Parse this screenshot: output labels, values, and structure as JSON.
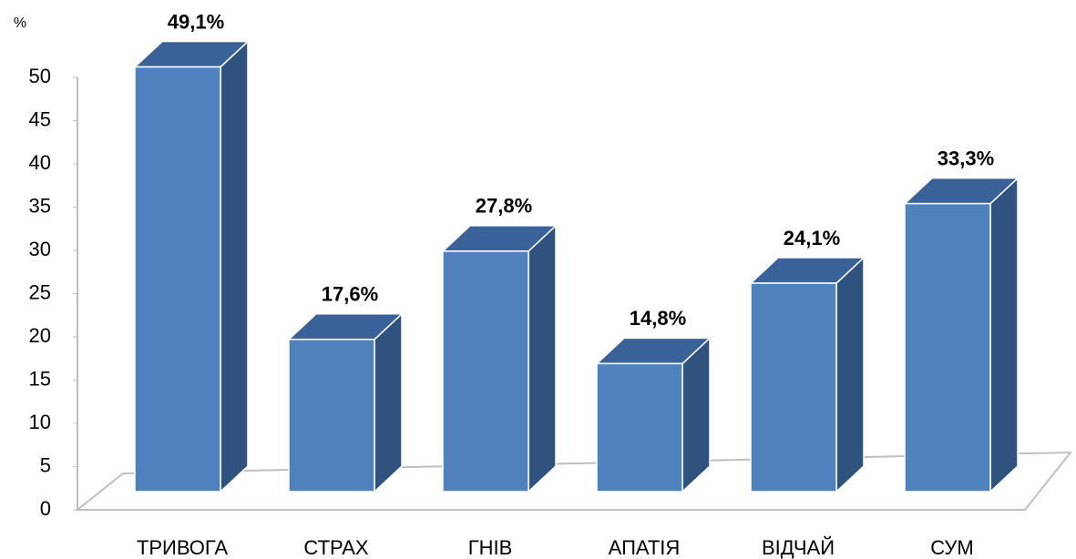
{
  "chart_data": {
    "type": "bar3d",
    "y_unit": "%",
    "categories": [
      "ТРИВОГА",
      "СТРАХ",
      "ГНІВ",
      "АПАТІЯ",
      "ВІДЧАЙ",
      "СУМ"
    ],
    "values": [
      49.1,
      17.6,
      27.8,
      14.8,
      24.1,
      33.3
    ],
    "value_labels": [
      "49,1%",
      "17,6%",
      "27,8%",
      "14,8%",
      "24,1%",
      "33,3%"
    ],
    "color": "#4f81bd",
    "ylim": [
      0,
      50
    ],
    "yticks": [
      0,
      5,
      10,
      15,
      20,
      25,
      30,
      35,
      40,
      45,
      50
    ]
  }
}
